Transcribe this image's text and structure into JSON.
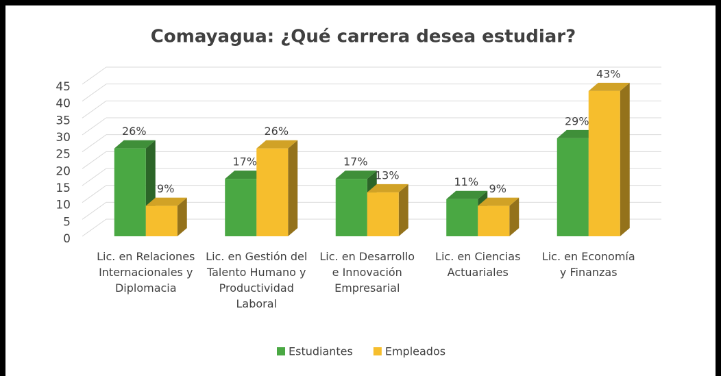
{
  "chart_data": {
    "type": "bar3d",
    "title": "Comayagua: ¿Qué carrera desea estudiar?",
    "categories": [
      "Lic. en Relaciones Internacionales y Diplomacia",
      "Lic. en Gestión del Talento Humano y Productividad Laboral",
      "Lic. en Desarrollo e Innovación Empresarial",
      "Lic. en Ciencias Actuariales",
      "Lic. en Economía y Finanzas"
    ],
    "series": [
      {
        "name": "Estudiantes",
        "color": "#4aa843",
        "values": [
          26,
          17,
          17,
          11,
          29
        ],
        "value_labels": [
          "26%",
          "17%",
          "17%",
          "11%",
          "29%"
        ]
      },
      {
        "name": "Empleados",
        "color": "#f6be2d",
        "values": [
          9,
          26,
          13,
          9,
          43
        ],
        "value_labels": [
          "9%",
          "26%",
          "13%",
          "9%",
          "43%"
        ]
      }
    ],
    "ylim": [
      0,
      45
    ],
    "yticks": [
      0,
      5,
      10,
      15,
      20,
      25,
      30,
      35,
      40,
      45
    ],
    "grid": true,
    "legend": "bottom"
  }
}
